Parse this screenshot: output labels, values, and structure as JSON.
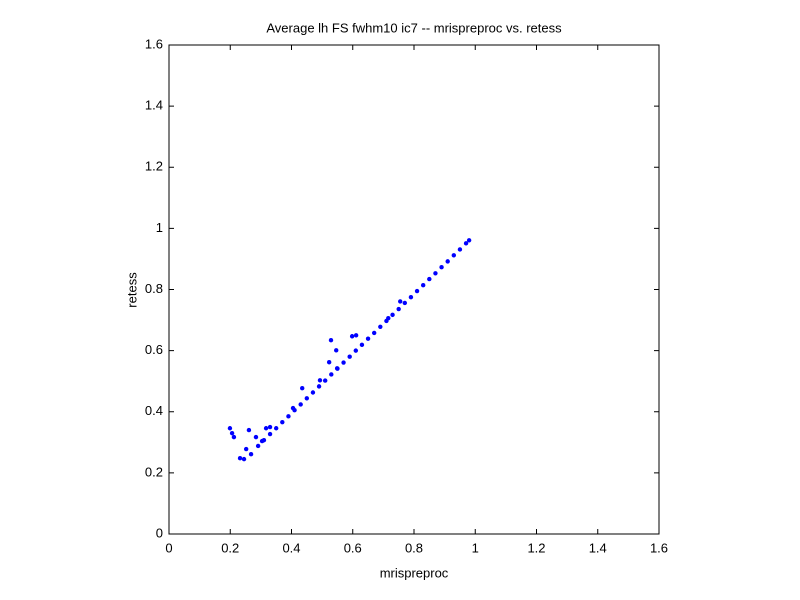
{
  "chart_data": {
    "type": "scatter",
    "title": "Average lh FS fwhm10 ic7 -- mrispreproc vs. retess",
    "xlabel": "mrispreproc",
    "ylabel": "retess",
    "color": "#0000ff",
    "x": [
      0.199,
      0.206,
      0.212,
      0.232,
      0.245,
      0.252,
      0.261,
      0.268,
      0.284,
      0.291,
      0.304,
      0.317,
      0.33,
      0.405,
      0.435,
      0.529,
      0.546,
      0.598,
      0.611,
      0.523,
      0.549,
      0.493,
      0.716,
      0.755,
      0.31,
      0.33,
      0.35,
      0.37,
      0.39,
      0.41,
      0.43,
      0.45,
      0.47,
      0.49,
      0.51,
      0.53,
      0.55,
      0.57,
      0.59,
      0.61,
      0.63,
      0.65,
      0.67,
      0.69,
      0.71,
      0.73,
      0.75,
      0.77,
      0.79,
      0.81,
      0.83,
      0.85,
      0.87,
      0.89,
      0.91,
      0.93,
      0.95,
      0.97,
      0.98
    ],
    "y": [
      0.346,
      0.33,
      0.317,
      0.248,
      0.245,
      0.278,
      0.34,
      0.261,
      0.317,
      0.288,
      0.304,
      0.346,
      0.35,
      0.412,
      0.477,
      0.634,
      0.601,
      0.647,
      0.65,
      0.562,
      0.542,
      0.503,
      0.706,
      0.761,
      0.307,
      0.327,
      0.346,
      0.366,
      0.385,
      0.405,
      0.424,
      0.444,
      0.463,
      0.483,
      0.502,
      0.522,
      0.541,
      0.561,
      0.58,
      0.6,
      0.619,
      0.639,
      0.658,
      0.678,
      0.697,
      0.717,
      0.736,
      0.756,
      0.775,
      0.795,
      0.814,
      0.834,
      0.853,
      0.873,
      0.892,
      0.912,
      0.931,
      0.951,
      0.961
    ],
    "xlim": [
      0,
      1.6
    ],
    "ylim": [
      0,
      1.6
    ],
    "xticks": [
      0,
      0.2,
      0.4,
      0.6,
      0.8,
      1,
      1.2,
      1.4,
      1.6
    ],
    "yticks": [
      0,
      0.2,
      0.4,
      0.6,
      0.8,
      1,
      1.2,
      1.4,
      1.6
    ]
  }
}
